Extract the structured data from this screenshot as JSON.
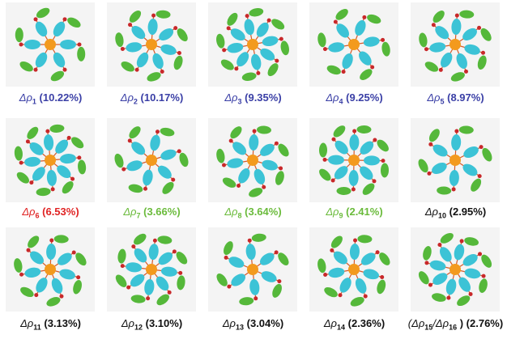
{
  "panels": [
    {
      "label": "Δρ",
      "subscript": "1",
      "value": "(10.22%)",
      "color": "#3a3fa6"
    },
    {
      "label": "Δρ",
      "subscript": "2",
      "value": "(10.17%)",
      "color": "#3a3fa6"
    },
    {
      "label": "Δρ",
      "subscript": "3",
      "value": "(9.35%)",
      "color": "#3a3fa6"
    },
    {
      "label": "Δρ",
      "subscript": "4",
      "value": "(9.25%)",
      "color": "#3a3fa6"
    },
    {
      "label": "Δρ",
      "subscript": "5",
      "value": "(8.97%)",
      "color": "#3a3fa6"
    },
    {
      "label": "Δρ",
      "subscript": "6",
      "value": "(6.53%)",
      "color": "#e02424"
    },
    {
      "label": "Δρ",
      "subscript": "7",
      "value": "(3.66%)",
      "color": "#6bbb3c"
    },
    {
      "label": "Δρ",
      "subscript": "8",
      "value": "(3.64%)",
      "color": "#6bbb3c"
    },
    {
      "label": "Δρ",
      "subscript": "9",
      "value": "(2.41%)",
      "color": "#6bbb3c"
    },
    {
      "label": "Δρ",
      "subscript": "10",
      "value": "(2.95%)",
      "color": "#111111"
    },
    {
      "label": "Δρ",
      "subscript": "11",
      "value": "(3.13%)",
      "color": "#111111"
    },
    {
      "label": "Δρ",
      "subscript": "12",
      "value": "(3.10%)",
      "color": "#111111"
    },
    {
      "label": "Δρ",
      "subscript": "13",
      "value": "(3.04%)",
      "color": "#111111"
    },
    {
      "label": "Δρ",
      "subscript": "14",
      "value": "(2.36%)",
      "color": "#111111"
    },
    {
      "label": "(Δρ",
      "subscript": "15",
      "label2": "/Δρ",
      "subscript2": "16",
      "value": ") (2.76%)",
      "color": "#111111"
    }
  ]
}
